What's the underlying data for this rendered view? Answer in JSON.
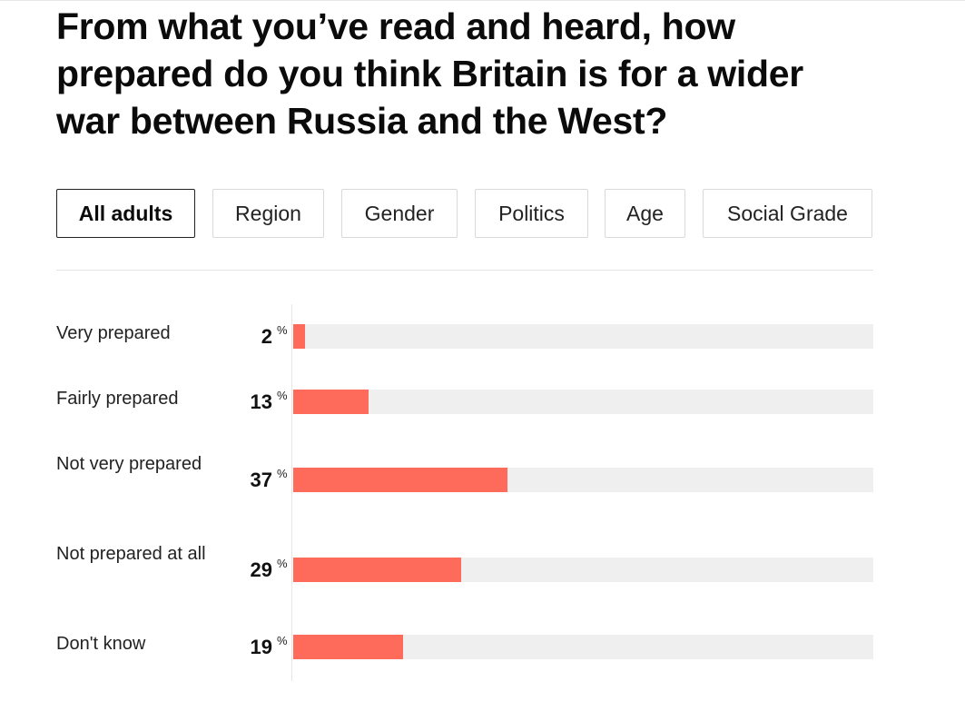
{
  "title": "From what you’ve read and heard, how prepared do you think Britain is for a wider war between Russia and the West?",
  "tabs": [
    {
      "label": "All adults",
      "active": true
    },
    {
      "label": "Region",
      "active": false
    },
    {
      "label": "Gender",
      "active": false
    },
    {
      "label": "Politics",
      "active": false
    },
    {
      "label": "Age",
      "active": false
    },
    {
      "label": "Social Grade",
      "active": false
    }
  ],
  "chart_data": {
    "type": "bar",
    "orientation": "horizontal",
    "unit": "%",
    "xlim": [
      0,
      100
    ],
    "categories": [
      "Very prepared",
      "Fairly prepared",
      "Not very prepared",
      "Not prepared at all",
      "Don't know"
    ],
    "values": [
      2,
      13,
      37,
      29,
      19
    ],
    "colors": {
      "bar": "#ff6b5b",
      "track": "#efeff0"
    }
  }
}
